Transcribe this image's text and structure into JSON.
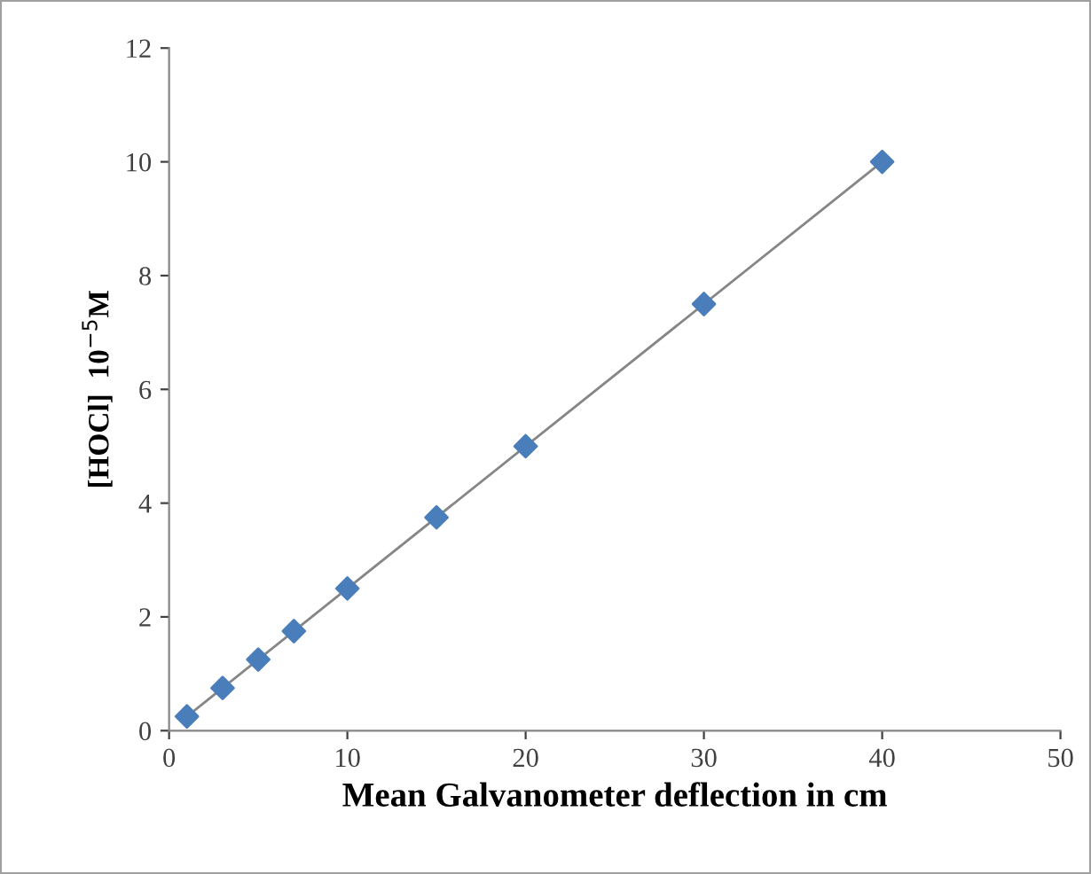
{
  "chart_data": {
    "type": "scatter",
    "xlabel": "Mean Galvanometer deflection in cm",
    "ylabel": "[HOCl]  10$^{−5}$M",
    "series": [
      {
        "color": "#4a7ebb",
        "marker": "diamond",
        "x": [
          1,
          3,
          5,
          7,
          10,
          15,
          20,
          30,
          40
        ],
        "values": [
          0.25,
          0.75,
          1.25,
          1.75,
          2.5,
          3.75,
          5,
          7.5,
          10
        ]
      },
      {
        "type": "line",
        "color": "#868686",
        "marker": "none",
        "line_style": "solid",
        "x": [
          1,
          40
        ],
        "values": [
          0.25,
          10
        ]
      }
    ],
    "xlim": [
      0,
      50
    ],
    "xticks": [
      0,
      10,
      20,
      30,
      40,
      50
    ],
    "ylim": [
      0,
      12
    ],
    "yticks": [
      0,
      2,
      4,
      6,
      8,
      10,
      12
    ],
    "grid": false,
    "legend": false
  }
}
